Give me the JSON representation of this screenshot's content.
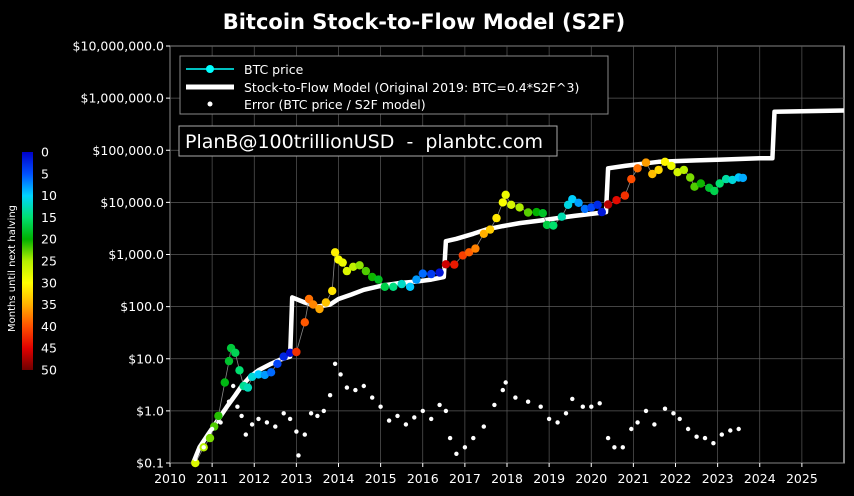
{
  "chart_data": {
    "type": "scatter",
    "title": "Bitcoin Stock-to-Flow Model (S2F)",
    "annotation": "PlanB@100trillionUSD  -  planbtc.com",
    "y_scale": "log",
    "ylim": [
      0.1,
      10000000
    ],
    "xlim": [
      2010,
      2026
    ],
    "y_ticks": [
      "$0.1",
      "$1.0",
      "$10.0",
      "$100.0",
      "$1,000.0",
      "$10,000.0",
      "$100,000.0",
      "$1,000,000.0",
      "$10,000,000.0"
    ],
    "x_ticks": [
      "2010",
      "2011",
      "2012",
      "2013",
      "2014",
      "2015",
      "2016",
      "2017",
      "2018",
      "2019",
      "2020",
      "2021",
      "2022",
      "2023",
      "2024",
      "2025"
    ],
    "grid": true,
    "legend_placement": "top-left",
    "legend": [
      {
        "label": "BTC price",
        "marker": "cyan-dot-line"
      },
      {
        "label": "Stock-to-Flow Model (Original 2019: BTC=0.4*S2F^3)",
        "marker": "thick-white-line"
      },
      {
        "label": "Error (BTC price / S2F model)",
        "marker": "white-dot"
      }
    ],
    "colorbar": {
      "label": "Months until next halving",
      "ticks": [
        "0",
        "5",
        "10",
        "15",
        "20",
        "25",
        "30",
        "35",
        "40",
        "45",
        "50"
      ],
      "range": [
        0,
        50
      ],
      "colors": [
        "#0000c8",
        "#0050ff",
        "#00d4ff",
        "#00e070",
        "#00b000",
        "#b4f000",
        "#ffff00",
        "#ffb000",
        "#ff5000",
        "#e00000",
        "#700000"
      ]
    },
    "series": [
      {
        "name": "BTC price",
        "points": [
          [
            2010.6,
            0.1
          ],
          [
            2010.8,
            0.2
          ],
          [
            2010.95,
            0.3
          ],
          [
            2011.05,
            0.5
          ],
          [
            2011.15,
            0.8
          ],
          [
            2011.3,
            3.5
          ],
          [
            2011.4,
            9.0
          ],
          [
            2011.45,
            16.0
          ],
          [
            2011.55,
            13.0
          ],
          [
            2011.65,
            6.0
          ],
          [
            2011.75,
            3.0
          ],
          [
            2011.85,
            2.8
          ],
          [
            2011.95,
            4.5
          ],
          [
            2012.1,
            5.0
          ],
          [
            2012.25,
            4.9
          ],
          [
            2012.4,
            5.5
          ],
          [
            2012.55,
            8.0
          ],
          [
            2012.7,
            11.0
          ],
          [
            2012.85,
            13.0
          ],
          [
            2013.0,
            13.5
          ],
          [
            2013.2,
            50.0
          ],
          [
            2013.3,
            140.0
          ],
          [
            2013.4,
            110.0
          ],
          [
            2013.55,
            90.0
          ],
          [
            2013.7,
            120.0
          ],
          [
            2013.85,
            200.0
          ],
          [
            2013.92,
            1100.0
          ],
          [
            2014.0,
            800.0
          ],
          [
            2014.1,
            700.0
          ],
          [
            2014.2,
            480.0
          ],
          [
            2014.35,
            580.0
          ],
          [
            2014.5,
            620.0
          ],
          [
            2014.65,
            480.0
          ],
          [
            2014.8,
            370.0
          ],
          [
            2014.95,
            330.0
          ],
          [
            2015.1,
            240.0
          ],
          [
            2015.3,
            240.0
          ],
          [
            2015.5,
            270.0
          ],
          [
            2015.7,
            240.0
          ],
          [
            2015.85,
            330.0
          ],
          [
            2016.0,
            430.0
          ],
          [
            2016.2,
            420.0
          ],
          [
            2016.4,
            450.0
          ],
          [
            2016.55,
            650.0
          ],
          [
            2016.75,
            640.0
          ],
          [
            2016.95,
            960.0
          ],
          [
            2017.1,
            1100.0
          ],
          [
            2017.25,
            1300.0
          ],
          [
            2017.45,
            2500.0
          ],
          [
            2017.6,
            3000.0
          ],
          [
            2017.75,
            5000.0
          ],
          [
            2017.9,
            10000.0
          ],
          [
            2017.97,
            14000.0
          ],
          [
            2018.1,
            9000.0
          ],
          [
            2018.3,
            8000.0
          ],
          [
            2018.5,
            6400.0
          ],
          [
            2018.7,
            6500.0
          ],
          [
            2018.85,
            6200.0
          ],
          [
            2018.95,
            3700.0
          ],
          [
            2019.1,
            3600.0
          ],
          [
            2019.3,
            5300.0
          ],
          [
            2019.45,
            9000.0
          ],
          [
            2019.55,
            11500.0
          ],
          [
            2019.7,
            9800.0
          ],
          [
            2019.85,
            7500.0
          ],
          [
            2020.0,
            8000.0
          ],
          [
            2020.15,
            9000.0
          ],
          [
            2020.25,
            6500.0
          ],
          [
            2020.4,
            9100.0
          ],
          [
            2020.6,
            11000.0
          ],
          [
            2020.8,
            13500.0
          ],
          [
            2020.95,
            28000.0
          ],
          [
            2021.1,
            45000.0
          ],
          [
            2021.3,
            58000.0
          ],
          [
            2021.45,
            35000.0
          ],
          [
            2021.6,
            42000.0
          ],
          [
            2021.75,
            60000.0
          ],
          [
            2021.9,
            50000.0
          ],
          [
            2022.05,
            38000.0
          ],
          [
            2022.2,
            42000.0
          ],
          [
            2022.35,
            30000.0
          ],
          [
            2022.45,
            20000.0
          ],
          [
            2022.6,
            23000.0
          ],
          [
            2022.8,
            19000.0
          ],
          [
            2022.92,
            16500.0
          ],
          [
            2023.05,
            23000.0
          ],
          [
            2023.2,
            28000.0
          ],
          [
            2023.35,
            27000.0
          ],
          [
            2023.5,
            30000.0
          ],
          [
            2023.6,
            29500.0
          ]
        ]
      },
      {
        "name": "Stock-to-Flow Model (Original 2019: BTC=0.4*S2F^3)",
        "points": [
          [
            2010.55,
            0.1
          ],
          [
            2010.7,
            0.2
          ],
          [
            2010.9,
            0.35
          ],
          [
            2011.1,
            0.6
          ],
          [
            2011.35,
            1.2
          ],
          [
            2011.55,
            2.0
          ],
          [
            2011.7,
            3.0
          ],
          [
            2011.9,
            4.5
          ],
          [
            2012.1,
            6.0
          ],
          [
            2012.4,
            8.0
          ],
          [
            2012.6,
            9.5
          ],
          [
            2012.85,
            11.0
          ],
          [
            2012.9,
            150.0
          ],
          [
            2013.2,
            120.0
          ],
          [
            2013.5,
            100.0
          ],
          [
            2013.8,
            110.0
          ],
          [
            2014.0,
            140.0
          ],
          [
            2014.3,
            170.0
          ],
          [
            2014.6,
            210.0
          ],
          [
            2015.0,
            250.0
          ],
          [
            2015.4,
            280.0
          ],
          [
            2015.8,
            300.0
          ],
          [
            2016.2,
            330.0
          ],
          [
            2016.5,
            370.0
          ],
          [
            2016.55,
            1800.0
          ],
          [
            2016.8,
            2000.0
          ],
          [
            2017.2,
            2500.0
          ],
          [
            2017.5,
            3000.0
          ],
          [
            2017.9,
            3500.0
          ],
          [
            2018.3,
            4000.0
          ],
          [
            2018.8,
            4500.0
          ],
          [
            2019.2,
            5000.0
          ],
          [
            2019.6,
            5500.0
          ],
          [
            2020.0,
            6000.0
          ],
          [
            2020.35,
            6500.0
          ],
          [
            2020.4,
            45000.0
          ],
          [
            2020.8,
            50000.0
          ],
          [
            2021.2,
            55000.0
          ],
          [
            2021.6,
            60000.0
          ],
          [
            2022.0,
            62000.0
          ],
          [
            2022.5,
            64000.0
          ],
          [
            2023.0,
            66000.0
          ],
          [
            2023.5,
            68000.0
          ],
          [
            2024.0,
            70000.0
          ],
          [
            2024.3,
            70000.0
          ],
          [
            2024.35,
            550000.0
          ],
          [
            2025.0,
            560000.0
          ],
          [
            2025.5,
            570000.0
          ],
          [
            2026.0,
            580000.0
          ]
        ]
      },
      {
        "name": "Error (BTC price / S2F model)",
        "points": [
          [
            2010.6,
            0.12
          ],
          [
            2010.8,
            0.2
          ],
          [
            2011.0,
            0.45
          ],
          [
            2011.2,
            0.6
          ],
          [
            2011.4,
            1.5
          ],
          [
            2011.5,
            3.0
          ],
          [
            2011.6,
            1.2
          ],
          [
            2011.7,
            0.8
          ],
          [
            2011.8,
            0.35
          ],
          [
            2011.95,
            0.55
          ],
          [
            2012.1,
            0.7
          ],
          [
            2012.3,
            0.6
          ],
          [
            2012.5,
            0.5
          ],
          [
            2012.7,
            0.9
          ],
          [
            2012.85,
            0.7
          ],
          [
            2013.0,
            0.4
          ],
          [
            2013.05,
            0.14
          ],
          [
            2013.2,
            0.35
          ],
          [
            2013.35,
            0.9
          ],
          [
            2013.5,
            0.8
          ],
          [
            2013.65,
            1.0
          ],
          [
            2013.8,
            2.0
          ],
          [
            2013.92,
            8.0
          ],
          [
            2014.05,
            5.0
          ],
          [
            2014.2,
            2.8
          ],
          [
            2014.4,
            2.5
          ],
          [
            2014.6,
            3.0
          ],
          [
            2014.8,
            1.8
          ],
          [
            2015.0,
            1.2
          ],
          [
            2015.2,
            0.65
          ],
          [
            2015.4,
            0.8
          ],
          [
            2015.6,
            0.55
          ],
          [
            2015.8,
            0.75
          ],
          [
            2016.0,
            1.0
          ],
          [
            2016.2,
            0.7
          ],
          [
            2016.4,
            1.3
          ],
          [
            2016.55,
            1.0
          ],
          [
            2016.65,
            0.3
          ],
          [
            2016.8,
            0.15
          ],
          [
            2017.0,
            0.2
          ],
          [
            2017.2,
            0.3
          ],
          [
            2017.45,
            0.5
          ],
          [
            2017.7,
            1.3
          ],
          [
            2017.9,
            2.5
          ],
          [
            2017.97,
            3.5
          ],
          [
            2018.2,
            1.8
          ],
          [
            2018.5,
            1.5
          ],
          [
            2018.8,
            1.2
          ],
          [
            2019.0,
            0.7
          ],
          [
            2019.2,
            0.6
          ],
          [
            2019.4,
            0.9
          ],
          [
            2019.55,
            1.7
          ],
          [
            2019.8,
            1.2
          ],
          [
            2020.0,
            1.2
          ],
          [
            2020.2,
            1.4
          ],
          [
            2020.4,
            0.3
          ],
          [
            2020.55,
            0.2
          ],
          [
            2020.75,
            0.2
          ],
          [
            2020.95,
            0.45
          ],
          [
            2021.1,
            0.6
          ],
          [
            2021.3,
            1.0
          ],
          [
            2021.5,
            0.55
          ],
          [
            2021.75,
            1.1
          ],
          [
            2021.95,
            0.9
          ],
          [
            2022.1,
            0.7
          ],
          [
            2022.3,
            0.45
          ],
          [
            2022.5,
            0.32
          ],
          [
            2022.7,
            0.3
          ],
          [
            2022.9,
            0.24
          ],
          [
            2023.1,
            0.35
          ],
          [
            2023.3,
            0.42
          ],
          [
            2023.5,
            0.45
          ]
        ]
      }
    ]
  }
}
